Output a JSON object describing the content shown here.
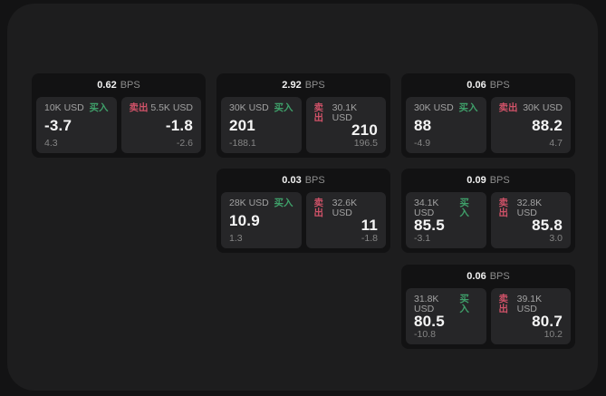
{
  "colors": {
    "buy": "#3fa06a",
    "sell": "#cf5268",
    "window_bg": "#1d1d1e",
    "card_bg": "#121213",
    "panel_bg": "#262628"
  },
  "cards": [
    {
      "bps_value": "0.62",
      "bps_unit": "BPS",
      "buy": {
        "label": "买入",
        "amount": "10K USD",
        "value": "-3.7",
        "sub": "4.3"
      },
      "sell": {
        "label": "卖出",
        "amount": "5.5K USD",
        "value": "-1.8",
        "sub": "-2.6"
      }
    },
    {
      "bps_value": "2.92",
      "bps_unit": "BPS",
      "buy": {
        "label": "买入",
        "amount": "30K USD",
        "value": "201",
        "sub": "-188.1"
      },
      "sell": {
        "label": "卖出",
        "amount": "30.1K USD",
        "value": "210",
        "sub": "196.5"
      }
    },
    {
      "bps_value": "0.06",
      "bps_unit": "BPS",
      "buy": {
        "label": "买入",
        "amount": "30K USD",
        "value": "88",
        "sub": "-4.9"
      },
      "sell": {
        "label": "卖出",
        "amount": "30K USD",
        "value": "88.2",
        "sub": "4.7"
      }
    },
    {
      "bps_value": "0.03",
      "bps_unit": "BPS",
      "buy": {
        "label": "买入",
        "amount": "28K USD",
        "value": "10.9",
        "sub": "1.3"
      },
      "sell": {
        "label": "卖出",
        "amount": "32.6K USD",
        "value": "11",
        "sub": "-1.8"
      }
    },
    {
      "bps_value": "0.09",
      "bps_unit": "BPS",
      "buy": {
        "label": "买入",
        "amount": "34.1K USD",
        "value": "85.5",
        "sub": "-3.1"
      },
      "sell": {
        "label": "卖出",
        "amount": "32.8K USD",
        "value": "85.8",
        "sub": "3.0"
      }
    },
    {
      "bps_value": "0.06",
      "bps_unit": "BPS",
      "buy": {
        "label": "买入",
        "amount": "31.8K USD",
        "value": "80.5",
        "sub": "-10.8"
      },
      "sell": {
        "label": "卖出",
        "amount": "39.1K USD",
        "value": "80.7",
        "sub": "10.2"
      }
    }
  ]
}
